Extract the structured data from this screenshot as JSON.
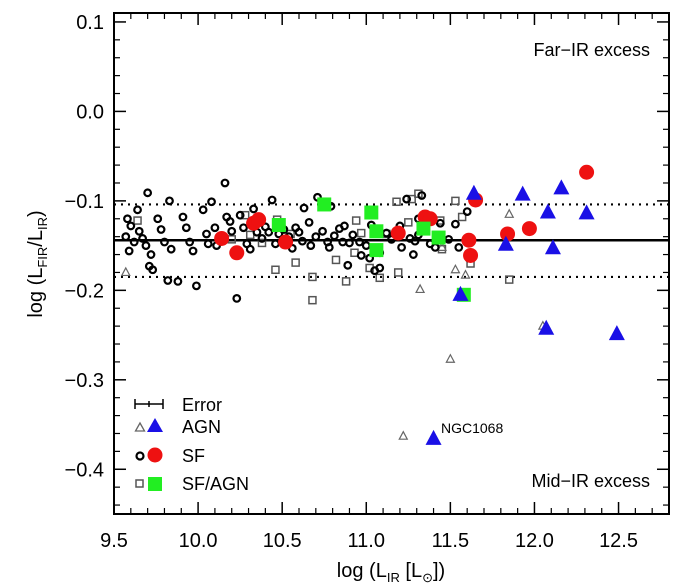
{
  "chart_data": {
    "type": "scatter",
    "xlabel": {
      "prefix": "log (L",
      "sub": "IR",
      "mid": " [L",
      "sun": "⊙",
      "suffix": "])"
    },
    "ylabel": {
      "prefix": "log (L",
      "sub1": "FIR",
      "mid": "/L",
      "sub2": "IR",
      "suffix": ")"
    },
    "xlim": [
      9.5,
      12.8
    ],
    "ylim": [
      -0.45,
      0.11
    ],
    "xticks": [
      9.5,
      10.0,
      10.5,
      11.0,
      11.5,
      12.0,
      12.5
    ],
    "xtick_labels": [
      "9.5",
      "10.0",
      "10.5",
      "11.0",
      "11.5",
      "12.0",
      "12.5"
    ],
    "yticks": [
      0.1,
      0.0,
      -0.1,
      -0.2,
      -0.3,
      -0.4
    ],
    "ytick_labels": [
      "0.1",
      "0.0",
      "−0.1",
      "−0.2",
      "−0.3",
      "−0.4"
    ],
    "reference_lines": {
      "mean": -0.144,
      "upper": -0.104,
      "lower": -0.185
    },
    "annotations": {
      "top_right": "Far−IR excess",
      "bottom_right": "Mid−IR excess",
      "ngc": "NGC1068"
    },
    "legend": {
      "placement": "bottom-left",
      "entries": [
        "Error",
        "AGN",
        "SF",
        "SF/AGN"
      ]
    },
    "colors": {
      "agn": "#1a10e6",
      "sf": "#ee1111",
      "sfagn": "#22ee22",
      "small_circle": "#000000",
      "small_square": "#555555",
      "small_triangle": "#666666"
    },
    "series": [
      {
        "name": "AGN",
        "marker": "triangle",
        "points": [
          [
            11.64,
            -0.092
          ],
          [
            11.83,
            -0.149
          ],
          [
            11.93,
            -0.093
          ],
          [
            12.08,
            -0.113
          ],
          [
            12.11,
            -0.153
          ],
          [
            12.16,
            -0.086
          ],
          [
            12.31,
            -0.114
          ],
          [
            12.49,
            -0.249
          ],
          [
            12.07,
            -0.243
          ],
          [
            11.56,
            -0.205
          ],
          [
            11.4,
            -0.366
          ]
        ]
      },
      {
        "name": "SF",
        "marker": "circle",
        "points": [
          [
            10.14,
            -0.142
          ],
          [
            10.23,
            -0.158
          ],
          [
            10.33,
            -0.125
          ],
          [
            10.36,
            -0.121
          ],
          [
            10.52,
            -0.146
          ],
          [
            11.19,
            -0.136
          ],
          [
            11.35,
            -0.118
          ],
          [
            11.38,
            -0.12
          ],
          [
            11.61,
            -0.144
          ],
          [
            11.62,
            -0.161
          ],
          [
            11.65,
            -0.099
          ],
          [
            11.84,
            -0.137
          ],
          [
            11.97,
            -0.131
          ],
          [
            12.31,
            -0.068
          ]
        ]
      },
      {
        "name": "SF/AGN",
        "marker": "square",
        "points": [
          [
            10.48,
            -0.127
          ],
          [
            10.75,
            -0.104
          ],
          [
            11.03,
            -0.113
          ],
          [
            11.06,
            -0.134
          ],
          [
            11.06,
            -0.155
          ],
          [
            11.34,
            -0.131
          ],
          [
            11.43,
            -0.141
          ],
          [
            11.58,
            -0.205
          ]
        ]
      },
      {
        "name": "small circles",
        "marker": "open-circle",
        "points": [
          [
            9.58,
            -0.12
          ],
          [
            9.6,
            -0.128
          ],
          [
            9.57,
            -0.14
          ],
          [
            9.62,
            -0.146
          ],
          [
            9.59,
            -0.156
          ],
          [
            9.64,
            -0.11
          ],
          [
            9.65,
            -0.134
          ],
          [
            9.67,
            -0.142
          ],
          [
            9.7,
            -0.091
          ],
          [
            9.69,
            -0.15
          ],
          [
            9.72,
            -0.16
          ],
          [
            9.71,
            -0.173
          ],
          [
            9.73,
            -0.177
          ],
          [
            9.76,
            -0.12
          ],
          [
            9.78,
            -0.132
          ],
          [
            9.8,
            -0.146
          ],
          [
            9.83,
            -0.1
          ],
          [
            9.84,
            -0.154
          ],
          [
            9.82,
            -0.189
          ],
          [
            9.88,
            -0.19
          ],
          [
            9.91,
            -0.118
          ],
          [
            9.93,
            -0.13
          ],
          [
            9.95,
            -0.146
          ],
          [
            9.97,
            -0.156
          ],
          [
            9.99,
            -0.195
          ],
          [
            10.03,
            -0.11
          ],
          [
            10.05,
            -0.137
          ],
          [
            10.06,
            -0.148
          ],
          [
            10.08,
            -0.101
          ],
          [
            10.1,
            -0.13
          ],
          [
            10.11,
            -0.15
          ],
          [
            10.16,
            -0.08
          ],
          [
            10.17,
            -0.118
          ],
          [
            10.19,
            -0.123
          ],
          [
            10.2,
            -0.134
          ],
          [
            10.23,
            -0.209
          ],
          [
            10.25,
            -0.116
          ],
          [
            10.27,
            -0.13
          ],
          [
            10.29,
            -0.148
          ],
          [
            10.31,
            -0.154
          ],
          [
            10.33,
            -0.109
          ],
          [
            10.35,
            -0.135
          ],
          [
            10.38,
            -0.142
          ],
          [
            10.4,
            -0.129
          ],
          [
            10.42,
            -0.135
          ],
          [
            10.44,
            -0.099
          ],
          [
            10.46,
            -0.148
          ],
          [
            10.48,
            -0.137
          ],
          [
            10.51,
            -0.132
          ],
          [
            10.54,
            -0.14
          ],
          [
            10.56,
            -0.153
          ],
          [
            10.58,
            -0.13
          ],
          [
            10.6,
            -0.135
          ],
          [
            10.62,
            -0.145
          ],
          [
            10.63,
            -0.108
          ],
          [
            10.66,
            -0.124
          ],
          [
            10.67,
            -0.15
          ],
          [
            10.7,
            -0.14
          ],
          [
            10.71,
            -0.096
          ],
          [
            10.74,
            -0.134
          ],
          [
            10.77,
            -0.146
          ],
          [
            10.78,
            -0.152
          ],
          [
            10.79,
            -0.106
          ],
          [
            10.81,
            -0.139
          ],
          [
            10.84,
            -0.131
          ],
          [
            10.86,
            -0.146
          ],
          [
            10.89,
            -0.172
          ],
          [
            10.9,
            -0.147
          ],
          [
            10.92,
            -0.138
          ],
          [
            10.96,
            -0.146
          ],
          [
            10.97,
            -0.161
          ],
          [
            11.0,
            -0.15
          ],
          [
            11.03,
            -0.127
          ],
          [
            11.05,
            -0.178
          ],
          [
            11.08,
            -0.158
          ],
          [
            11.12,
            -0.136
          ],
          [
            11.15,
            -0.143
          ],
          [
            11.17,
            -0.137
          ],
          [
            11.2,
            -0.128
          ],
          [
            11.21,
            -0.152
          ],
          [
            11.24,
            -0.098
          ],
          [
            11.26,
            -0.142
          ],
          [
            11.29,
            -0.145
          ],
          [
            11.31,
            -0.12
          ],
          [
            11.33,
            -0.094
          ],
          [
            11.38,
            -0.148
          ],
          [
            11.41,
            -0.152
          ],
          [
            11.44,
            -0.125
          ],
          [
            11.49,
            -0.143
          ],
          [
            11.53,
            -0.126
          ],
          [
            11.55,
            -0.152
          ],
          [
            11.6,
            -0.112
          ],
          [
            11.61,
            -0.164
          ],
          [
            11.31,
            -0.138
          ],
          [
            11.28,
            -0.16
          ],
          [
            11.08,
            -0.175
          ],
          [
            11.02,
            -0.164
          ],
          [
            10.87,
            -0.128
          ]
        ]
      },
      {
        "name": "small squares",
        "marker": "open-square",
        "points": [
          [
            9.64,
            -0.122
          ],
          [
            10.2,
            -0.143
          ],
          [
            10.28,
            -0.116
          ],
          [
            10.31,
            -0.138
          ],
          [
            10.38,
            -0.147
          ],
          [
            10.47,
            -0.121
          ],
          [
            10.55,
            -0.137
          ],
          [
            10.58,
            -0.169
          ],
          [
            10.68,
            -0.211
          ],
          [
            10.68,
            -0.185
          ],
          [
            10.82,
            -0.166
          ],
          [
            10.88,
            -0.19
          ],
          [
            10.93,
            -0.158
          ],
          [
            10.97,
            -0.136
          ],
          [
            11.02,
            -0.175
          ],
          [
            11.08,
            -0.186
          ],
          [
            11.12,
            -0.137
          ],
          [
            11.19,
            -0.18
          ],
          [
            11.25,
            -0.124
          ],
          [
            11.27,
            -0.098
          ],
          [
            11.31,
            -0.092
          ],
          [
            11.44,
            -0.122
          ],
          [
            11.45,
            -0.154
          ],
          [
            11.53,
            -0.1
          ],
          [
            11.57,
            -0.118
          ],
          [
            11.85,
            -0.188
          ],
          [
            10.46,
            -0.177
          ],
          [
            10.94,
            -0.122
          ],
          [
            11.18,
            -0.101
          ],
          [
            11.62,
            -0.17
          ]
        ]
      },
      {
        "name": "small triangles",
        "marker": "open-triangle",
        "points": [
          [
            9.57,
            -0.18
          ],
          [
            11.32,
            -0.199
          ],
          [
            11.22,
            -0.363
          ],
          [
            11.5,
            -0.277
          ],
          [
            11.53,
            -0.177
          ],
          [
            11.59,
            -0.183
          ],
          [
            12.05,
            -0.24
          ],
          [
            11.85,
            -0.115
          ],
          [
            11.45,
            -0.152
          ]
        ]
      }
    ]
  }
}
